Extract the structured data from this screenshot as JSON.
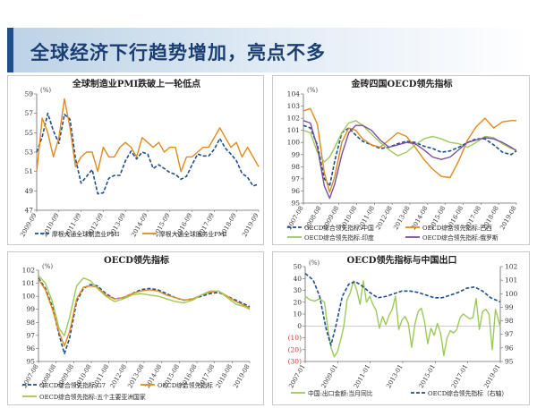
{
  "slide": {
    "title": "全球经济下行趋势增加，亮点不多"
  },
  "colors": {
    "banner_accent": "#1f4e8c",
    "dark_blue": "#1f4e8c",
    "orange": "#e08a1e",
    "green": "#9dc95a",
    "purple": "#7b4fa0"
  },
  "chart_data": [
    {
      "type": "line",
      "title": "全球制造业PMI跌破上一轮低点",
      "unit_label": "(%)",
      "ylim": [
        47,
        59
      ],
      "yticks": [
        47,
        49,
        51,
        53,
        55,
        57,
        59
      ],
      "xlim": [
        2009.75,
        2019.75
      ],
      "xtick_labels": [
        "2009-09",
        "2010-09",
        "2011-09",
        "2012-09",
        "2013-09",
        "2014-09",
        "2015-09",
        "2016-09",
        "2017-09",
        "2018-09",
        "2019-09"
      ],
      "grid": false,
      "legend_position": "bottom",
      "series": [
        {
          "name": "摩根大通全球制造业PMI",
          "color": "#1f4e8c",
          "dash": true,
          "x": [
            2009.75,
            2010.0,
            2010.25,
            2010.5,
            2010.75,
            2011.0,
            2011.25,
            2011.5,
            2011.75,
            2012.0,
            2012.25,
            2012.5,
            2012.75,
            2013.0,
            2013.25,
            2013.5,
            2013.75,
            2014.0,
            2014.25,
            2014.5,
            2014.75,
            2015.0,
            2015.25,
            2015.5,
            2015.75,
            2016.0,
            2016.25,
            2016.5,
            2016.75,
            2017.0,
            2017.25,
            2017.5,
            2017.75,
            2018.0,
            2018.25,
            2018.5,
            2018.75,
            2019.0,
            2019.25,
            2019.5,
            2019.75
          ],
          "y": [
            53.0,
            54.6,
            57.0,
            55.2,
            53.9,
            56.9,
            56.4,
            52.3,
            49.8,
            50.5,
            51.2,
            48.7,
            48.8,
            50.3,
            50.6,
            50.6,
            52.1,
            53.1,
            52.3,
            53.0,
            52.8,
            51.3,
            51.7,
            51.3,
            50.9,
            50.7,
            50.2,
            50.5,
            51.7,
            52.8,
            52.6,
            52.6,
            53.3,
            54.4,
            53.4,
            52.8,
            52.1,
            50.8,
            50.4,
            49.5,
            49.7
          ]
        },
        {
          "name": "摩根大通全球服务业PMI",
          "color": "#e08a1e",
          "dash": false,
          "x": [
            2009.75,
            2010.0,
            2010.25,
            2010.5,
            2010.75,
            2011.0,
            2011.25,
            2011.5,
            2011.75,
            2012.0,
            2012.25,
            2012.5,
            2012.75,
            2013.0,
            2013.25,
            2013.5,
            2013.75,
            2014.0,
            2014.25,
            2014.5,
            2014.75,
            2015.0,
            2015.25,
            2015.5,
            2015.75,
            2016.0,
            2016.25,
            2016.5,
            2016.75,
            2017.0,
            2017.25,
            2017.5,
            2017.75,
            2018.0,
            2018.25,
            2018.5,
            2018.75,
            2019.0,
            2019.25,
            2019.5,
            2019.75
          ],
          "y": [
            51.0,
            56.5,
            55.0,
            52.5,
            54.5,
            58.5,
            55.5,
            51.5,
            52.5,
            53.0,
            53.0,
            51.0,
            53.5,
            52.5,
            52.5,
            53.5,
            54.0,
            53.5,
            52.5,
            54.5,
            54.0,
            53.5,
            54.0,
            53.0,
            53.5,
            53.5,
            51.0,
            52.5,
            52.5,
            53.0,
            53.5,
            53.5,
            54.5,
            55.5,
            54.5,
            53.5,
            54.0,
            52.5,
            53.5,
            52.5,
            51.5
          ]
        }
      ]
    },
    {
      "type": "line",
      "title": "金砖四国OECD领先指标",
      "unit_label": "(%)",
      "ylim": [
        95,
        104
      ],
      "yticks": [
        95,
        96,
        97,
        98,
        99,
        100,
        101,
        102,
        103,
        104
      ],
      "xlim": [
        2007.6,
        2019.8
      ],
      "xtick_labels": [
        "2007-08",
        "2008-08",
        "2009-08",
        "2010-08",
        "2011-08",
        "2012-08",
        "2013-08",
        "2014-08",
        "2015-08",
        "2016-08",
        "2017-08",
        "2018-08",
        "2019-08"
      ],
      "grid": false,
      "legend_position": "bottom",
      "series": [
        {
          "name": "OECD综合领先指标:中国",
          "color": "#1f4e8c",
          "dash": true,
          "x": [
            2007.6,
            2008.0,
            2008.4,
            2008.8,
            2009.1,
            2009.4,
            2009.8,
            2010.2,
            2010.6,
            2011.0,
            2011.5,
            2012.0,
            2012.5,
            2013.0,
            2013.5,
            2014.0,
            2014.5,
            2015.0,
            2015.5,
            2016.0,
            2016.5,
            2017.0,
            2017.5,
            2018.0,
            2018.5,
            2019.0,
            2019.5,
            2019.8
          ],
          "y": [
            101.4,
            101.2,
            99.8,
            97.0,
            96.4,
            98.5,
            100.8,
            101.2,
            100.6,
            100.1,
            99.8,
            99.5,
            99.6,
            99.9,
            100.1,
            100.0,
            99.7,
            99.5,
            99.2,
            99.3,
            99.6,
            100.0,
            100.3,
            100.3,
            99.8,
            99.2,
            99.0,
            99.3
          ]
        },
        {
          "name": "OECD综合领先指标:巴西",
          "color": "#e08a1e",
          "dash": false,
          "x": [
            2007.6,
            2008.0,
            2008.4,
            2008.8,
            2009.1,
            2009.4,
            2009.8,
            2010.2,
            2010.6,
            2011.0,
            2011.5,
            2012.0,
            2012.5,
            2013.0,
            2013.5,
            2014.0,
            2014.5,
            2015.0,
            2015.5,
            2016.0,
            2016.5,
            2017.0,
            2017.5,
            2018.0,
            2018.5,
            2019.0,
            2019.5,
            2019.8
          ],
          "y": [
            102.6,
            102.8,
            101.5,
            97.5,
            95.9,
            97.2,
            100.0,
            101.2,
            101.0,
            100.3,
            99.8,
            99.6,
            100.2,
            100.8,
            100.5,
            99.6,
            98.6,
            97.8,
            97.2,
            97.1,
            98.5,
            100.2,
            101.3,
            102.0,
            101.2,
            101.7,
            101.8,
            101.8
          ]
        },
        {
          "name": "OECD综合领先指标:印度",
          "color": "#9dc95a",
          "dash": false,
          "x": [
            2007.6,
            2008.0,
            2008.4,
            2008.8,
            2009.1,
            2009.4,
            2009.8,
            2010.2,
            2010.6,
            2011.0,
            2011.5,
            2012.0,
            2012.5,
            2013.0,
            2013.5,
            2014.0,
            2014.5,
            2015.0,
            2015.5,
            2016.0,
            2016.5,
            2017.0,
            2017.5,
            2018.0,
            2018.5,
            2019.0,
            2019.5,
            2019.8
          ],
          "y": [
            101.0,
            100.8,
            99.2,
            98.4,
            98.8,
            99.6,
            100.8,
            101.6,
            101.8,
            101.4,
            100.7,
            100.0,
            99.4,
            98.9,
            99.2,
            99.8,
            100.3,
            100.5,
            100.3,
            100.0,
            99.9,
            99.6,
            100.0,
            100.5,
            100.4,
            99.9,
            99.5,
            99.4
          ]
        },
        {
          "name": "OECD综合领先指标:俄罗斯",
          "color": "#7b4fa0",
          "dash": false,
          "x": [
            2007.6,
            2008.0,
            2008.4,
            2008.8,
            2009.1,
            2009.4,
            2009.8,
            2010.2,
            2010.6,
            2011.0,
            2011.5,
            2012.0,
            2012.5,
            2013.0,
            2013.5,
            2014.0,
            2014.5,
            2015.0,
            2015.5,
            2016.0,
            2016.5,
            2017.0,
            2017.5,
            2018.0,
            2018.5,
            2019.0,
            2019.5,
            2019.8
          ],
          "y": [
            101.8,
            101.6,
            99.6,
            96.4,
            95.4,
            96.6,
            99.0,
            100.8,
            101.4,
            101.4,
            101.0,
            100.2,
            99.6,
            99.8,
            100.0,
            99.9,
            99.4,
            98.8,
            98.6,
            98.8,
            99.4,
            100.0,
            100.2,
            100.4,
            100.3,
            100.0,
            99.6,
            99.3
          ]
        }
      ]
    },
    {
      "type": "line",
      "title": "OECD领先指标",
      "unit_label": "(%)",
      "ylim": [
        95,
        102
      ],
      "yticks": [
        95,
        96,
        97,
        98,
        99,
        100,
        101,
        102
      ],
      "xlim": [
        2007.6,
        2019.8
      ],
      "xtick_labels": [
        "2007-08",
        "2008-08",
        "2009-08",
        "2010-08",
        "2011-08",
        "2012-08",
        "2013-08",
        "2014-08",
        "2015-08",
        "2016-08",
        "2017-08",
        "2018-08",
        "2019-08"
      ],
      "grid": false,
      "legend_position": "bottom",
      "series": [
        {
          "name": "OECD综合领先指标:G7",
          "color": "#1f4e8c",
          "dash": true,
          "x": [
            2007.6,
            2008.0,
            2008.4,
            2008.8,
            2009.1,
            2009.4,
            2009.8,
            2010.2,
            2010.6,
            2011.0,
            2011.5,
            2012.0,
            2012.5,
            2013.0,
            2013.5,
            2014.0,
            2014.5,
            2015.0,
            2015.5,
            2016.0,
            2016.5,
            2017.0,
            2017.5,
            2018.0,
            2018.5,
            2019.0,
            2019.5,
            2019.8
          ],
          "y": [
            101.4,
            100.6,
            99.2,
            97.0,
            95.6,
            96.8,
            99.6,
            100.6,
            100.9,
            100.8,
            100.2,
            99.8,
            99.9,
            100.2,
            100.5,
            100.6,
            100.5,
            100.2,
            99.9,
            99.7,
            99.8,
            100.0,
            100.2,
            100.3,
            100.0,
            99.7,
            99.4,
            99.2
          ]
        },
        {
          "name": "OECD综合领先指标",
          "color": "#e08a1e",
          "dash": false,
          "x": [
            2007.6,
            2008.0,
            2008.4,
            2008.8,
            2009.1,
            2009.4,
            2009.8,
            2010.2,
            2010.6,
            2011.0,
            2011.5,
            2012.0,
            2012.5,
            2013.0,
            2013.5,
            2014.0,
            2014.5,
            2015.0,
            2015.5,
            2016.0,
            2016.5,
            2017.0,
            2017.5,
            2018.0,
            2018.5,
            2019.0,
            2019.5,
            2019.8
          ],
          "y": [
            101.3,
            100.5,
            99.0,
            97.2,
            96.2,
            97.3,
            99.8,
            100.7,
            100.8,
            100.7,
            100.1,
            99.8,
            99.9,
            100.2,
            100.4,
            100.5,
            100.4,
            100.1,
            99.9,
            99.7,
            99.8,
            100.1,
            100.3,
            100.4,
            100.0,
            99.6,
            99.3,
            99.1
          ]
        },
        {
          "name": "OECD综合领先指标:五个主要亚洲国家",
          "color": "#9dc95a",
          "dash": false,
          "x": [
            2007.6,
            2008.0,
            2008.4,
            2008.8,
            2009.1,
            2009.4,
            2009.8,
            2010.2,
            2010.6,
            2011.0,
            2011.5,
            2012.0,
            2012.5,
            2013.0,
            2013.5,
            2014.0,
            2014.5,
            2015.0,
            2015.5,
            2016.0,
            2016.5,
            2017.0,
            2017.5,
            2018.0,
            2018.5,
            2019.0,
            2019.5,
            2019.8
          ],
          "y": [
            101.6,
            101.0,
            99.6,
            97.5,
            97.0,
            98.4,
            100.8,
            101.4,
            101.2,
            100.6,
            100.0,
            99.6,
            99.8,
            100.1,
            100.2,
            100.1,
            100.0,
            99.8,
            99.6,
            99.5,
            99.7,
            100.1,
            100.4,
            100.4,
            99.9,
            99.4,
            99.2,
            99.0
          ]
        }
      ]
    },
    {
      "type": "line",
      "title": "OECD领先指标与中国出口",
      "unit_label": "(%)",
      "ylim": [
        -30,
        50
      ],
      "yticks": [
        -30,
        -20,
        -10,
        0,
        10,
        20,
        30,
        40,
        50
      ],
      "ytick_labels": [
        "(30)",
        "(20)",
        "(10)",
        "0",
        "10",
        "20",
        "30",
        "40",
        "50"
      ],
      "y2lim": [
        95,
        102
      ],
      "y2ticks": [
        95,
        96,
        97,
        98,
        99,
        100,
        101,
        102
      ],
      "xlim": [
        2007.5,
        2019.6
      ],
      "xtick_labels": [
        "2007-01",
        "2009-01",
        "2011-01",
        "2013-01",
        "2015-01",
        "2017-01",
        "2019-01"
      ],
      "grid": false,
      "legend_position": "bottom",
      "series": [
        {
          "name": "中国:出口金额:当月同比",
          "color": "#9dc95a",
          "dash": false,
          "axis": "left",
          "x": [
            2007.5,
            2007.8,
            2008.1,
            2008.4,
            2008.7,
            2008.9,
            2009.1,
            2009.3,
            2009.5,
            2009.7,
            2009.9,
            2010.1,
            2010.3,
            2010.5,
            2010.7,
            2010.9,
            2011.1,
            2011.3,
            2011.5,
            2011.7,
            2011.9,
            2012.1,
            2012.3,
            2012.5,
            2012.7,
            2012.9,
            2013.1,
            2013.3,
            2013.5,
            2013.7,
            2013.9,
            2014.1,
            2014.3,
            2014.5,
            2014.7,
            2014.9,
            2015.1,
            2015.3,
            2015.5,
            2015.7,
            2015.9,
            2016.1,
            2016.3,
            2016.5,
            2016.7,
            2016.9,
            2017.1,
            2017.3,
            2017.5,
            2017.7,
            2017.9,
            2018.1,
            2018.3,
            2018.5,
            2018.7,
            2018.9,
            2019.1,
            2019.3,
            2019.6
          ],
          "y": [
            25,
            22,
            21,
            23,
            20,
            -2,
            -18,
            -26,
            -22,
            -12,
            0,
            22,
            28,
            38,
            30,
            18,
            38,
            20,
            25,
            18,
            13,
            -2,
            8,
            1,
            9,
            14,
            25,
            -3,
            5,
            8,
            2,
            -18,
            1,
            12,
            15,
            4,
            -15,
            -2,
            -8,
            2,
            -6,
            -25,
            -10,
            -4,
            -6,
            -3,
            7,
            10,
            8,
            6,
            7,
            23,
            -3,
            12,
            14,
            10,
            -20,
            14,
            -1
          ]
        },
        {
          "name": "OECD综合领先指标（右轴）",
          "color": "#1f4e8c",
          "dash": true,
          "axis": "right",
          "x": [
            2007.5,
            2008.0,
            2008.4,
            2008.8,
            2009.1,
            2009.4,
            2009.8,
            2010.2,
            2010.6,
            2011.0,
            2011.5,
            2012.0,
            2012.5,
            2013.0,
            2013.5,
            2014.0,
            2014.5,
            2015.0,
            2015.5,
            2016.0,
            2016.5,
            2017.0,
            2017.5,
            2018.0,
            2018.5,
            2019.0,
            2019.6
          ],
          "y": [
            101.5,
            101.0,
            99.8,
            97.4,
            96.2,
            97.6,
            99.8,
            100.7,
            100.9,
            100.6,
            100.1,
            99.7,
            99.8,
            100.0,
            100.2,
            100.2,
            100.1,
            99.9,
            99.7,
            99.7,
            99.9,
            100.1,
            100.4,
            100.5,
            100.2,
            99.7,
            99.4
          ]
        }
      ]
    }
  ]
}
